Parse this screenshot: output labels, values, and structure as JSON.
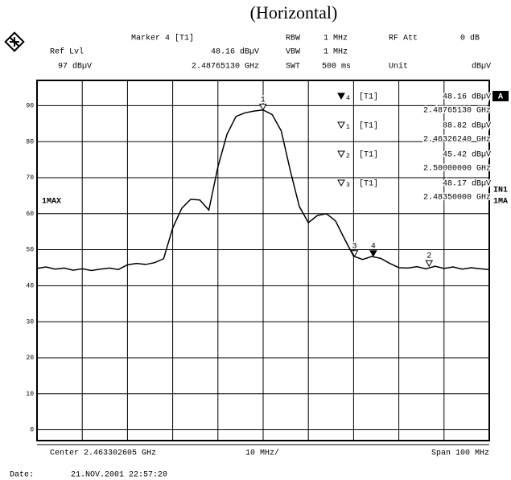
{
  "chart_data": {
    "type": "line",
    "title": "(Horizontal)",
    "header": {
      "marker": "Marker 4 [T1]",
      "marker_level": "48.16 dBµV",
      "marker_freq": "2.48765130 GHz",
      "ref_lvl_label": "Ref Lvl",
      "ref_lvl": "97 dBµV",
      "rbw_label": "RBW",
      "rbw": "1 MHz",
      "vbw_label": "VBW",
      "vbw": "1 MHz",
      "swt_label": "SWT",
      "swt": "500 ms",
      "rf_att_label": "RF Att",
      "rf_att": "0 dB",
      "unit_label": "Unit",
      "unit": "dBµV"
    },
    "side_labels": {
      "a": "A",
      "in1": "IN1",
      "ma": "1MA",
      "trace": "1MAX"
    },
    "x": [
      2.4133,
      2.4153,
      2.4173,
      2.4193,
      2.4213,
      2.4233,
      2.4253,
      2.4273,
      2.4293,
      2.4313,
      2.4333,
      2.4353,
      2.4373,
      2.4393,
      2.4413,
      2.4433,
      2.4453,
      2.4473,
      2.4493,
      2.4513,
      2.4533,
      2.4553,
      2.4573,
      2.4593,
      2.4613,
      2.4633,
      2.4653,
      2.4673,
      2.4693,
      2.4713,
      2.4733,
      2.4753,
      2.4773,
      2.4793,
      2.4813,
      2.4833,
      2.4853,
      2.4873,
      2.4893,
      2.4913,
      2.4933,
      2.4953,
      2.4973,
      2.4993,
      2.5013,
      2.5033,
      2.5053,
      2.5073,
      2.5093,
      2.5113,
      2.5133
    ],
    "values": [
      44.8,
      45.2,
      44.6,
      44.9,
      44.3,
      44.7,
      44.2,
      44.6,
      44.9,
      44.5,
      45.8,
      46.2,
      45.9,
      46.4,
      47.5,
      56,
      61.5,
      64,
      63.8,
      61,
      73,
      82,
      87,
      88,
      88.5,
      88.8,
      87.5,
      83,
      72,
      62,
      57.5,
      59.5,
      60,
      58,
      53,
      48.2,
      47.3,
      48.1,
      47.6,
      46.2,
      45,
      44.9,
      45.3,
      44.7,
      45.4,
      44.8,
      45.2,
      44.6,
      45.0,
      44.7,
      44.5
    ],
    "xlim": [
      2.4133026,
      2.5133026
    ],
    "ylim": [
      -3,
      97
    ],
    "yticks": [
      0,
      10,
      20,
      30,
      40,
      50,
      60,
      70,
      80,
      90
    ],
    "color": "#000000",
    "markers": [
      {
        "name": "4",
        "filled": true,
        "tag": "[T1]",
        "x": 2.4876513,
        "x_label": "2.48765130 GHz",
        "value": 48.16,
        "value_label": "48.16 dBµV"
      },
      {
        "name": "1",
        "filled": false,
        "tag": "[T1]",
        "x": 2.4632624,
        "x_label": "2.46326240 GHz",
        "value": 88.82,
        "value_label": "88.82 dBµV"
      },
      {
        "name": "2",
        "filled": false,
        "tag": "[T1]",
        "x": 2.5,
        "x_label": "2.50000000 GHz",
        "value": 45.42,
        "value_label": "45.42 dBµV"
      },
      {
        "name": "3",
        "filled": false,
        "tag": "[T1]",
        "x": 2.4835,
        "x_label": "2.48350000 GHz",
        "value": 48.17,
        "value_label": "48.17 dBµV"
      }
    ],
    "footer": {
      "center": "Center 2.463302605 GHz",
      "div": "10 MHz/",
      "span": "Span 100 MHz",
      "date_label": "Date:",
      "date": "21.NOV.2001 22:57:20"
    }
  }
}
